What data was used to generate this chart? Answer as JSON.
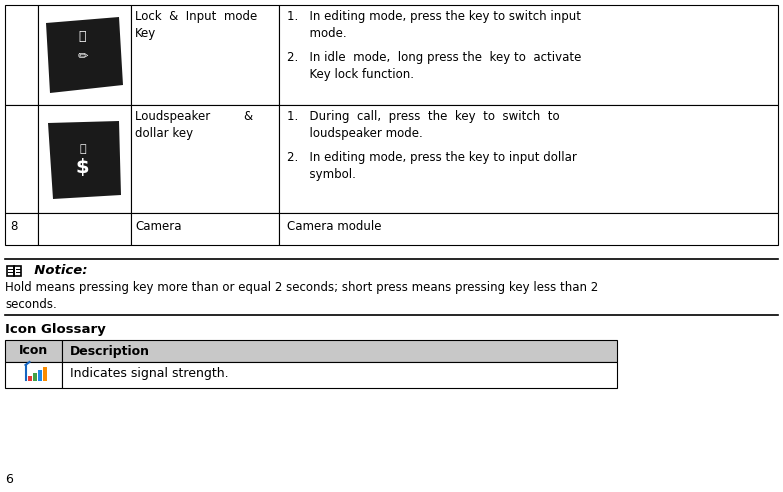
{
  "bg_color": "#ffffff",
  "border_color": "#000000",
  "gray_header_bg": "#c8c8c8",
  "page_number": "6",
  "notice_icon": "※",
  "notice_title": "  Notice:",
  "notice_body": "Hold means pressing key more than or equal 2 seconds; short press means pressing key less than 2\nseconds.",
  "icon_glossary_title": "Icon Glossary",
  "glossary_col1": "Icon",
  "glossary_col2": "Description",
  "glossary_row1_desc": "Indicates signal strength.",
  "row0_label": "Lock  &  Input  mode\nKey",
  "row0_desc1": "1.   In editing mode, press the key to switch input\n      mode.",
  "row0_desc2": "2.   In idle  mode,  long press the  key to  activate\n      Key lock function.",
  "row1_label": "Loudspeaker         &\ndollar key",
  "row1_desc1": "1.   During  call,  press  the  key  to  switch  to\n      loudspeaker mode.",
  "row1_desc2": "2.   In editing mode, press the key to input dollar\n      symbol.",
  "row2_num": "8",
  "row2_label": "Camera",
  "row2_desc": "Camera module",
  "signal_colors": [
    "#e53935",
    "#43a047",
    "#1e88e5",
    "#fb8c00"
  ],
  "icon_bg": "#1a1a1a"
}
